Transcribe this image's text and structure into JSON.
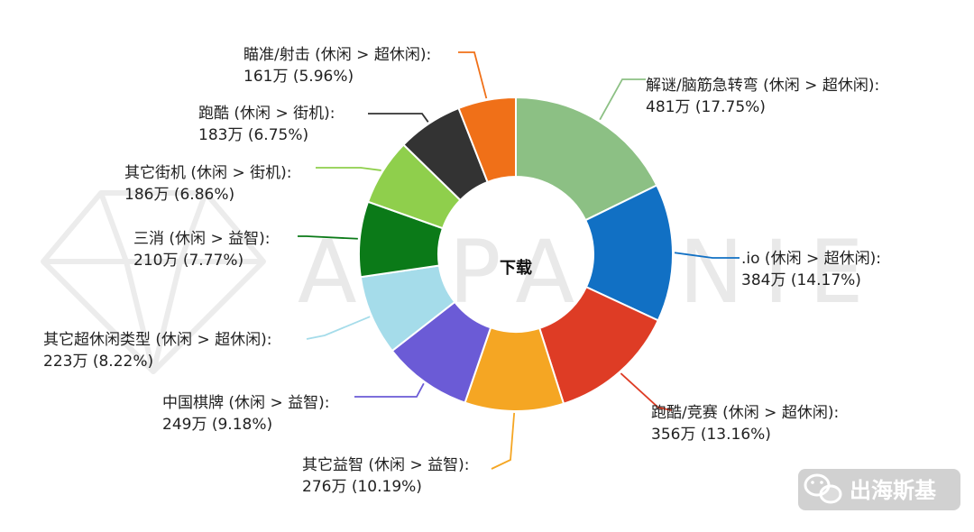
{
  "chart_data": {
    "type": "pie",
    "donut": true,
    "center_title": "下载",
    "unit": "万",
    "slices": [
      {
        "name": "解谜/脑筋急转弯 (休闲 > 超休闲):",
        "value": 481,
        "value_label": "481万",
        "percent": 17.75,
        "percent_label": "(17.75%)",
        "color": "#8cc084"
      },
      {
        "name": ".io (休闲 > 超休闲):",
        "value": 384,
        "value_label": "384万",
        "percent": 14.17,
        "percent_label": "(14.17%)",
        "color": "#1170c4"
      },
      {
        "name": "跑酷/竞赛 (休闲 > 超休闲):",
        "value": 356,
        "value_label": "356万",
        "percent": 13.16,
        "percent_label": "(13.16%)",
        "color": "#de3c25"
      },
      {
        "name": "其它益智 (休闲 > 益智):",
        "value": 276,
        "value_label": "276万",
        "percent": 10.19,
        "percent_label": "(10.19%)",
        "color": "#f5a623"
      },
      {
        "name": "中国棋牌 (休闲 > 益智):",
        "value": 249,
        "value_label": "249万",
        "percent": 9.18,
        "percent_label": "(9.18%)",
        "color": "#6b5bd6"
      },
      {
        "name": "其它超休闲类型 (休闲 > 超休闲):",
        "value": 223,
        "value_label": "223万",
        "percent": 8.22,
        "percent_label": "(8.22%)",
        "color": "#a5dcea"
      },
      {
        "name": "三消 (休闲 > 益智):",
        "value": 210,
        "value_label": "210万",
        "percent": 7.77,
        "percent_label": "(7.77%)",
        "color": "#0b7a18"
      },
      {
        "name": "其它街机 (休闲 > 街机):",
        "value": 186,
        "value_label": "186万",
        "percent": 6.86,
        "percent_label": "(6.86%)",
        "color": "#8fcf4c"
      },
      {
        "name": "跑酷 (休闲 > 街机):",
        "value": 183,
        "value_label": "183万",
        "percent": 6.75,
        "percent_label": "(6.75%)",
        "color": "#333333"
      },
      {
        "name": "瞄准/射击 (休闲 > 超休闲):",
        "value": 161,
        "value_label": "161万",
        "percent": 5.96,
        "percent_label": "(5.96%)",
        "color": "#f07018"
      }
    ]
  },
  "watermark": {
    "text": "APPANNIE",
    "color": "#e9e9e9"
  },
  "wechat_badge": {
    "text": "出海斯基",
    "icon": "wechat-icon"
  }
}
